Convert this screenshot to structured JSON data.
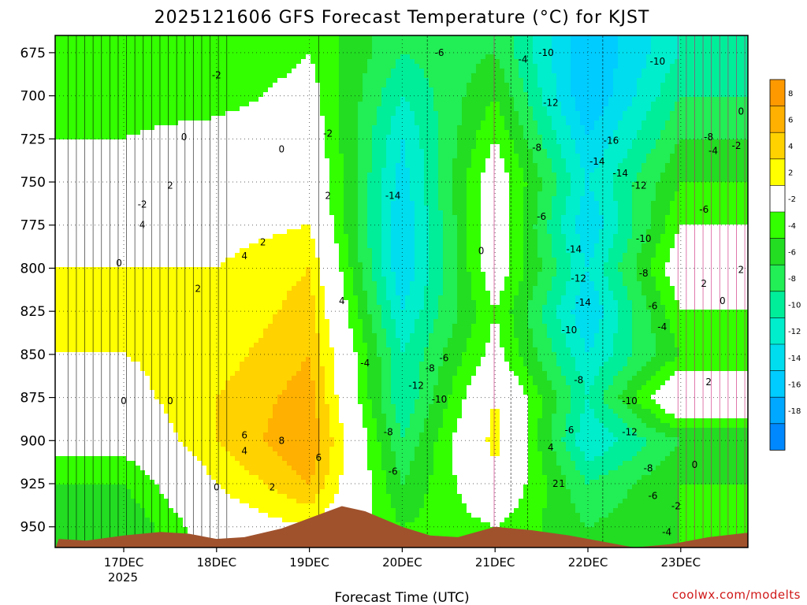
{
  "chart_data": {
    "type": "heatmap",
    "title": "2025121606 GFS Forecast Temperature (°C) for KJST",
    "xlabel": "Forecast Time (UTC)",
    "ylabel": "",
    "credit": "coolwx.com/modelts",
    "x_tick_labels": [
      "17DEC",
      "18DEC",
      "19DEC",
      "20DEC",
      "21DEC",
      "22DEC",
      "23DEC"
    ],
    "x_tick_sublabel": "2025",
    "y_axis": {
      "reversed": true,
      "range": [
        665,
        962
      ]
    },
    "y_ticks": [
      675,
      700,
      725,
      750,
      775,
      800,
      825,
      850,
      875,
      900,
      925,
      950
    ],
    "grid": true,
    "colorbar": {
      "placement": "right",
      "levels": [
        8,
        6,
        4,
        2,
        -2,
        -4,
        -6,
        -8,
        -10,
        -12,
        -14,
        -16,
        -18
      ],
      "colors": [
        "#ff9900",
        "#ffb000",
        "#ffd200",
        "#ffff00",
        "#ffffff",
        "#33ff00",
        "#22dd22",
        "#22ee55",
        "#00ee99",
        "#00eecc",
        "#00ddee",
        "#00ccff",
        "#00a8ff",
        "#0088ff"
      ]
    },
    "terrain_color": "#a0522d",
    "series": [
      {
        "x": "17DEC",
        "values": [
          -4,
          -3,
          -2,
          -1,
          0,
          2,
          3,
          2,
          1,
          -1,
          -4,
          -6
        ]
      },
      {
        "x": "18DEC",
        "values": [
          -4,
          -3,
          -1,
          0,
          1,
          2,
          2,
          3,
          4,
          4,
          2,
          0
        ]
      },
      {
        "x": "19DEC",
        "values": [
          -2,
          -1,
          0,
          1,
          2,
          4,
          5,
          6,
          7,
          8,
          6,
          2
        ]
      },
      {
        "x": "20DEC",
        "values": [
          -8,
          -10,
          -12,
          -13,
          -14,
          -14,
          -12,
          -10,
          -10,
          -8,
          -6,
          -4
        ]
      },
      {
        "x": "21DEC",
        "values": [
          -6,
          -4,
          -2,
          0,
          0,
          0,
          -2,
          -1,
          2,
          3,
          1,
          -2
        ]
      },
      {
        "x": "22DEC",
        "values": [
          -16,
          -16,
          -14,
          -12,
          -14,
          -12,
          -14,
          -12,
          -10,
          -12,
          -8,
          -6
        ]
      },
      {
        "x": "23DEC",
        "values": [
          -10,
          -8,
          -6,
          -4,
          -2,
          0,
          -2,
          -4,
          2,
          -6,
          -4,
          -4
        ]
      }
    ],
    "contour_labels": [
      {
        "t": "-2",
        "x": 17.2,
        "y": 763
      },
      {
        "t": "0",
        "x": 16.95,
        "y": 797
      },
      {
        "t": "4",
        "x": 17.2,
        "y": 775
      },
      {
        "t": "2",
        "x": 17.5,
        "y": 752
      },
      {
        "t": "0",
        "x": 17.65,
        "y": 724
      },
      {
        "t": "-2",
        "x": 18.0,
        "y": 688
      },
      {
        "t": "0",
        "x": 17.0,
        "y": 877
      },
      {
        "t": "0",
        "x": 17.5,
        "y": 877
      },
      {
        "t": "2",
        "x": 17.8,
        "y": 812
      },
      {
        "t": "0",
        "x": 18.0,
        "y": 927
      },
      {
        "t": "4",
        "x": 18.3,
        "y": 793
      },
      {
        "t": "2",
        "x": 18.5,
        "y": 785
      },
      {
        "t": "6",
        "x": 18.3,
        "y": 897
      },
      {
        "t": "4",
        "x": 18.3,
        "y": 906
      },
      {
        "t": "8",
        "x": 18.7,
        "y": 900
      },
      {
        "t": "2",
        "x": 18.6,
        "y": 927
      },
      {
        "t": "6",
        "x": 19.1,
        "y": 910
      },
      {
        "t": "4",
        "x": 19.35,
        "y": 819
      },
      {
        "t": "2",
        "x": 19.2,
        "y": 758
      },
      {
        "t": "0",
        "x": 18.7,
        "y": 731
      },
      {
        "t": "-2",
        "x": 19.2,
        "y": 722
      },
      {
        "t": "-4",
        "x": 19.6,
        "y": 855
      },
      {
        "t": "-14",
        "x": 19.9,
        "y": 758
      },
      {
        "t": "-6",
        "x": 20.4,
        "y": 675
      },
      {
        "t": "-6",
        "x": 20.45,
        "y": 852
      },
      {
        "t": "-8",
        "x": 20.3,
        "y": 858
      },
      {
        "t": "-12",
        "x": 20.15,
        "y": 868
      },
      {
        "t": "-10",
        "x": 20.4,
        "y": 876
      },
      {
        "t": "-8",
        "x": 19.85,
        "y": 895
      },
      {
        "t": "-6",
        "x": 19.9,
        "y": 918
      },
      {
        "t": "0",
        "x": 20.85,
        "y": 790
      },
      {
        "t": "-4",
        "x": 21.3,
        "y": 679
      },
      {
        "t": "-10",
        "x": 21.55,
        "y": 675
      },
      {
        "t": "-12",
        "x": 21.6,
        "y": 704
      },
      {
        "t": "-8",
        "x": 21.45,
        "y": 730
      },
      {
        "t": "-6",
        "x": 21.5,
        "y": 770
      },
      {
        "t": "-14",
        "x": 21.85,
        "y": 789
      },
      {
        "t": "-12",
        "x": 21.9,
        "y": 806
      },
      {
        "t": "-14",
        "x": 21.95,
        "y": 820
      },
      {
        "t": "-10",
        "x": 21.8,
        "y": 836
      },
      {
        "t": "-8",
        "x": 21.9,
        "y": 865
      },
      {
        "t": "-6",
        "x": 21.8,
        "y": 894
      },
      {
        "t": "4",
        "x": 21.6,
        "y": 904
      },
      {
        "t": "2",
        "x": 21.65,
        "y": 925
      },
      {
        "t": "1",
        "x": 21.72,
        "y": 925
      },
      {
        "t": "-16",
        "x": 22.25,
        "y": 726
      },
      {
        "t": "-14",
        "x": 22.1,
        "y": 738
      },
      {
        "t": "-14",
        "x": 22.35,
        "y": 745
      },
      {
        "t": "-12",
        "x": 22.55,
        "y": 752
      },
      {
        "t": "-10",
        "x": 22.75,
        "y": 680
      },
      {
        "t": "-10",
        "x": 22.6,
        "y": 783
      },
      {
        "t": "-8",
        "x": 22.6,
        "y": 803
      },
      {
        "t": "-6",
        "x": 22.7,
        "y": 822
      },
      {
        "t": "-4",
        "x": 22.8,
        "y": 834
      },
      {
        "t": "-10",
        "x": 22.45,
        "y": 877
      },
      {
        "t": "-12",
        "x": 22.45,
        "y": 895
      },
      {
        "t": "-8",
        "x": 22.65,
        "y": 916
      },
      {
        "t": "-6",
        "x": 22.7,
        "y": 932
      },
      {
        "t": "-2",
        "x": 22.95,
        "y": 938
      },
      {
        "t": "-4",
        "x": 22.85,
        "y": 953
      },
      {
        "t": "-8",
        "x": 23.3,
        "y": 724
      },
      {
        "t": "-4",
        "x": 23.35,
        "y": 732
      },
      {
        "t": "-2",
        "x": 23.6,
        "y": 729
      },
      {
        "t": "0",
        "x": 23.65,
        "y": 709
      },
      {
        "t": "-6",
        "x": 23.25,
        "y": 766
      },
      {
        "t": "2",
        "x": 23.25,
        "y": 809
      },
      {
        "t": "0",
        "x": 23.45,
        "y": 819
      },
      {
        "t": "2",
        "x": 23.65,
        "y": 801
      },
      {
        "t": "2",
        "x": 23.3,
        "y": 866
      },
      {
        "t": "0",
        "x": 23.15,
        "y": 914
      }
    ]
  }
}
